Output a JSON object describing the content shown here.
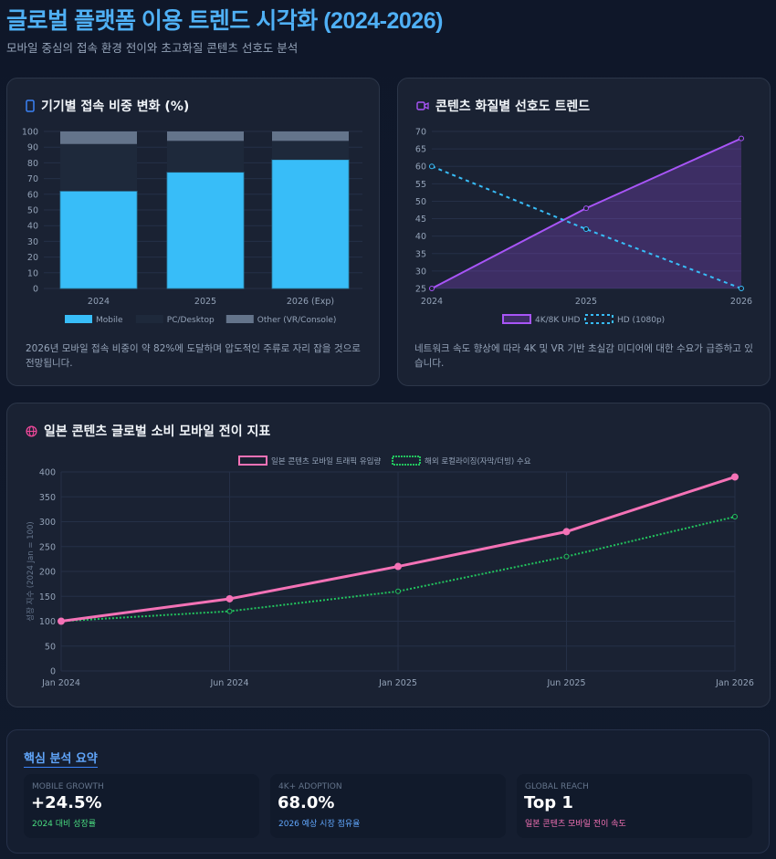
{
  "header": {
    "title": "글로벌 플랫폼 이용 트렌드 시각화 (2024-2026)",
    "subtitle": "모바일 중심의 접속 환경 전이와 초고화질 콘텐츠 선호도 분석"
  },
  "cards": [
    {
      "title": "기기별 접속 비중 변화 (%)",
      "icon": "mobile-phone-icon",
      "icon_color": "#3b82f6",
      "description": "2026년 모바일 접속 비중이 약 82%에 도달하며 압도적인 주류로 자리 잡을 것으로 전망됩니다."
    },
    {
      "title": "콘텐츠 화질별 선호도 트렌드",
      "icon": "video-camera-icon",
      "icon_color": "#a855f7",
      "description": "네트워크 속도 향상에 따라 4K 및 VR 기반 초실감 미디어에 대한 수요가 급증하고 있습니다."
    },
    {
      "title": "일본 콘텐츠 글로벌 소비 모바일 전이 지표",
      "icon": "globe-icon",
      "icon_color": "#ec4899"
    }
  ],
  "chart_data": [
    {
      "type": "bar",
      "stacked": true,
      "categories": [
        "2024",
        "2025",
        "2026 (Exp)"
      ],
      "ylim": [
        0,
        100
      ],
      "yticks": [
        0,
        10,
        20,
        30,
        40,
        50,
        60,
        70,
        80,
        90,
        100
      ],
      "grid": true,
      "legend": "bottom",
      "series": [
        {
          "name": "Mobile",
          "values": [
            62,
            74,
            82
          ],
          "color": "#38bdf8"
        },
        {
          "name": "PC/Desktop",
          "values": [
            30,
            20,
            12
          ],
          "color": "#1e293b"
        },
        {
          "name": "Other (VR/Console)",
          "values": [
            8,
            6,
            6
          ],
          "color": "#64748b"
        }
      ]
    },
    {
      "type": "line",
      "categories": [
        "2024",
        "2025",
        "2026"
      ],
      "ylim": [
        25,
        70
      ],
      "yticks": [
        25,
        30,
        35,
        40,
        45,
        50,
        55,
        60,
        65,
        70
      ],
      "grid": true,
      "legend": "bottom",
      "series": [
        {
          "name": "4K/8K UHD",
          "values": [
            25,
            48,
            68
          ],
          "color": "#a855f7",
          "fill": true
        },
        {
          "name": "HD (1080p)",
          "values": [
            60,
            42,
            25
          ],
          "color": "#38bdf8",
          "dashed": true
        }
      ]
    },
    {
      "type": "line",
      "categories": [
        "Jan 2024",
        "Jun 2024",
        "Jan 2025",
        "Jun 2025",
        "Jan 2026"
      ],
      "ylim": [
        0,
        400
      ],
      "yticks": [
        0,
        50,
        100,
        150,
        200,
        250,
        300,
        350,
        400
      ],
      "ylabel": "성장 지수 (2024 Jan = 100)",
      "grid": true,
      "legend": "top",
      "series": [
        {
          "name": "일본 콘텐츠 모바일 트래픽 유입량",
          "values": [
            100,
            145,
            210,
            280,
            390
          ],
          "color": "#f472b6"
        },
        {
          "name": "해외 로컬라이징(자막/더빙) 수요",
          "values": [
            100,
            120,
            160,
            230,
            310
          ],
          "color": "#22c55e",
          "dotted": true
        }
      ]
    }
  ],
  "summary": {
    "title": "핵심 분석 요약",
    "kpis": [
      {
        "label": "MOBILE GROWTH",
        "value": "+24.5%",
        "sub": "2024 대비 성장률",
        "color": "#4ade80"
      },
      {
        "label": "4K+ ADOPTION",
        "value": "68.0%",
        "sub": "2026 예상 시장 점유율",
        "color": "#60a5fa"
      },
      {
        "label": "GLOBAL REACH",
        "value": "Top 1",
        "sub": "일본 콘텐츠 모바일 전이 속도",
        "color": "#f472b6"
      }
    ]
  }
}
